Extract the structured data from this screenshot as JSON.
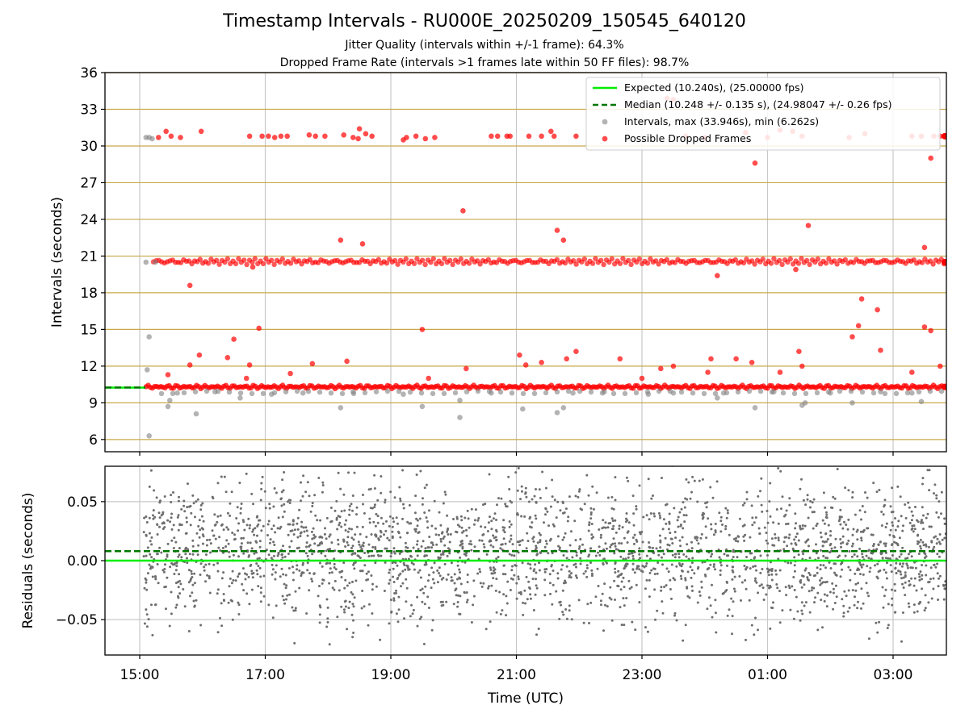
{
  "title": "Timestamp Intervals - RU000E_20250209_150545_640120",
  "subtitle_1": "Jitter Quality (intervals within +/-1 frame): 64.3%",
  "subtitle_2": "Dropped Frame Rate (intervals >1 frames late within 50 FF files): 98.7%",
  "colors": {
    "expected": "#00ee00",
    "median": "#007700",
    "intervals": "#808080",
    "dropped": "#ff0000",
    "hgrid": "#c9a94a",
    "vgrid": "#c8c8c8"
  },
  "chart_data": [
    {
      "type": "scatter",
      "ylabel": "Intervals (seconds)",
      "ylim": [
        5,
        36
      ],
      "yticks": [
        "6",
        "9",
        "12",
        "15",
        "18",
        "21",
        "24",
        "27",
        "30",
        "33",
        "36"
      ],
      "grid": true,
      "legend_position": "top-right",
      "legend": [
        "Expected (10.240s), (25.00000 fps)",
        "Median (10.248 +/- 0.135 s), (24.98047 +/- 0.26 fps)",
        "Intervals, max (33.946s), min (6.262s)",
        "Possible Dropped Frames"
      ],
      "expected_value": 10.24,
      "median_value": 10.248,
      "series": [
        {
          "name": "Intervals, max (33.946s), min (6.262s)",
          "points": [
            [
              15.1,
              30.7
            ],
            [
              15.15,
              30.7
            ],
            [
              15.2,
              30.6
            ],
            [
              15.1,
              20.5
            ],
            [
              15.25,
              20.5
            ],
            [
              15.15,
              14.4
            ],
            [
              15.12,
              11.7
            ],
            [
              15.15,
              6.3
            ],
            [
              15.45,
              8.7
            ],
            [
              15.48,
              9.2
            ],
            [
              15.9,
              8.1
            ],
            [
              16.6,
              9.4
            ],
            [
              18.2,
              8.6
            ],
            [
              19.5,
              8.7
            ],
            [
              20.1,
              7.8
            ],
            [
              20.1,
              9.2
            ],
            [
              21.1,
              8.5
            ],
            [
              21.65,
              8.2
            ],
            [
              21.75,
              8.6
            ],
            [
              23.5,
              9.8
            ],
            [
              24.2,
              9.4
            ],
            [
              0.8,
              8.6
            ],
            [
              1.55,
              8.8
            ],
            [
              1.6,
              9.0
            ],
            [
              2.35,
              9.0
            ],
            [
              3.45,
              9.1
            ],
            [
              15.6,
              9.8
            ],
            [
              16.2,
              9.9
            ],
            [
              17.1,
              9.7
            ],
            [
              17.6,
              9.8
            ],
            [
              18.4,
              9.9
            ],
            [
              19.2,
              9.7
            ],
            [
              20.6,
              9.8
            ],
            [
              21.9,
              9.8
            ],
            [
              22.4,
              9.9
            ],
            [
              23.1,
              9.7
            ],
            [
              0.3,
              9.8
            ],
            [
              1.1,
              9.9
            ],
            [
              2.0,
              9.8
            ],
            [
              2.8,
              9.9
            ],
            [
              3.3,
              9.8
            ]
          ]
        },
        {
          "name": "Possible Dropped Frames",
          "points": [
            [
              15.3,
              30.7
            ],
            [
              15.42,
              31.2
            ],
            [
              15.5,
              30.8
            ],
            [
              15.65,
              30.7
            ],
            [
              15.98,
              31.2
            ],
            [
              16.75,
              30.8
            ],
            [
              16.95,
              30.8
            ],
            [
              17.05,
              30.8
            ],
            [
              17.15,
              30.7
            ],
            [
              17.25,
              30.8
            ],
            [
              17.35,
              30.8
            ],
            [
              17.7,
              30.9
            ],
            [
              17.8,
              30.8
            ],
            [
              17.95,
              30.8
            ],
            [
              18.25,
              30.9
            ],
            [
              18.4,
              30.7
            ],
            [
              18.48,
              30.6
            ],
            [
              18.5,
              31.4
            ],
            [
              18.6,
              31.0
            ],
            [
              18.7,
              30.8
            ],
            [
              19.2,
              30.5
            ],
            [
              19.25,
              30.7
            ],
            [
              19.4,
              30.8
            ],
            [
              19.55,
              30.6
            ],
            [
              19.7,
              30.7
            ],
            [
              20.6,
              30.8
            ],
            [
              20.7,
              30.8
            ],
            [
              20.85,
              30.8
            ],
            [
              20.9,
              30.8
            ],
            [
              21.2,
              30.8
            ],
            [
              21.4,
              30.8
            ],
            [
              21.55,
              31.2
            ],
            [
              21.6,
              30.8
            ],
            [
              21.95,
              30.8
            ],
            [
              23.7,
              30.8
            ],
            [
              24.0,
              30.7
            ],
            [
              1.0,
              30.7
            ],
            [
              1.2,
              31.3
            ],
            [
              1.4,
              31.2
            ],
            [
              1.55,
              30.8
            ],
            [
              2.3,
              30.7
            ],
            [
              2.55,
              31.0
            ],
            [
              3.3,
              30.8
            ],
            [
              3.45,
              30.8
            ],
            [
              3.65,
              30.8
            ],
            [
              3.75,
              30.8
            ],
            [
              0.65,
              31.1
            ],
            [
              0.8,
              28.6
            ],
            [
              3.6,
              29.0
            ],
            [
              23.4,
              33.9
            ],
            [
              23.5,
              33.8
            ],
            [
              20.15,
              24.7
            ],
            [
              1.65,
              23.5
            ],
            [
              21.65,
              23.1
            ],
            [
              21.75,
              22.3
            ],
            [
              18.2,
              22.3
            ],
            [
              18.55,
              22.0
            ],
            [
              3.5,
              21.7
            ],
            [
              15.8,
              18.6
            ],
            [
              0.2,
              19.4
            ],
            [
              1.45,
              19.9
            ],
            [
              16.8,
              20.1
            ],
            [
              15.45,
              11.3
            ],
            [
              15.8,
              12.1
            ],
            [
              15.95,
              12.9
            ],
            [
              16.4,
              12.7
            ],
            [
              16.5,
              14.2
            ],
            [
              16.7,
              11.0
            ],
            [
              16.75,
              12.1
            ],
            [
              16.9,
              15.1
            ],
            [
              17.4,
              11.4
            ],
            [
              17.75,
              12.2
            ],
            [
              18.3,
              12.4
            ],
            [
              19.5,
              15.0
            ],
            [
              19.6,
              11.0
            ],
            [
              20.2,
              11.8
            ],
            [
              21.05,
              12.9
            ],
            [
              21.15,
              12.1
            ],
            [
              21.4,
              12.3
            ],
            [
              21.8,
              12.6
            ],
            [
              21.95,
              13.2
            ],
            [
              22.65,
              12.6
            ],
            [
              23.0,
              11.0
            ],
            [
              23.3,
              11.8
            ],
            [
              23.5,
              12.0
            ],
            [
              24.1,
              12.6
            ],
            [
              0.05,
              11.5
            ],
            [
              0.5,
              12.6
            ],
            [
              0.75,
              12.3
            ],
            [
              1.2,
              11.5
            ],
            [
              1.5,
              13.2
            ],
            [
              1.55,
              12.0
            ],
            [
              2.35,
              14.4
            ],
            [
              2.45,
              15.3
            ],
            [
              2.5,
              17.5
            ],
            [
              2.75,
              16.6
            ],
            [
              2.8,
              13.3
            ],
            [
              3.3,
              11.5
            ],
            [
              3.5,
              15.2
            ],
            [
              3.6,
              14.9
            ],
            [
              3.75,
              12.0
            ]
          ]
        }
      ]
    },
    {
      "type": "scatter",
      "ylabel": "Residuals (seconds)",
      "xlabel": "Time (UTC)",
      "ylim": [
        -0.08,
        0.08
      ],
      "yticks": [
        "−0.05",
        "0.00",
        "0.05"
      ],
      "xticks": [
        "15:00",
        "17:00",
        "19:00",
        "21:00",
        "23:00",
        "01:00",
        "03:00"
      ],
      "grid": true,
      "expected_value": 0.0,
      "median_value": 0.008
    }
  ]
}
